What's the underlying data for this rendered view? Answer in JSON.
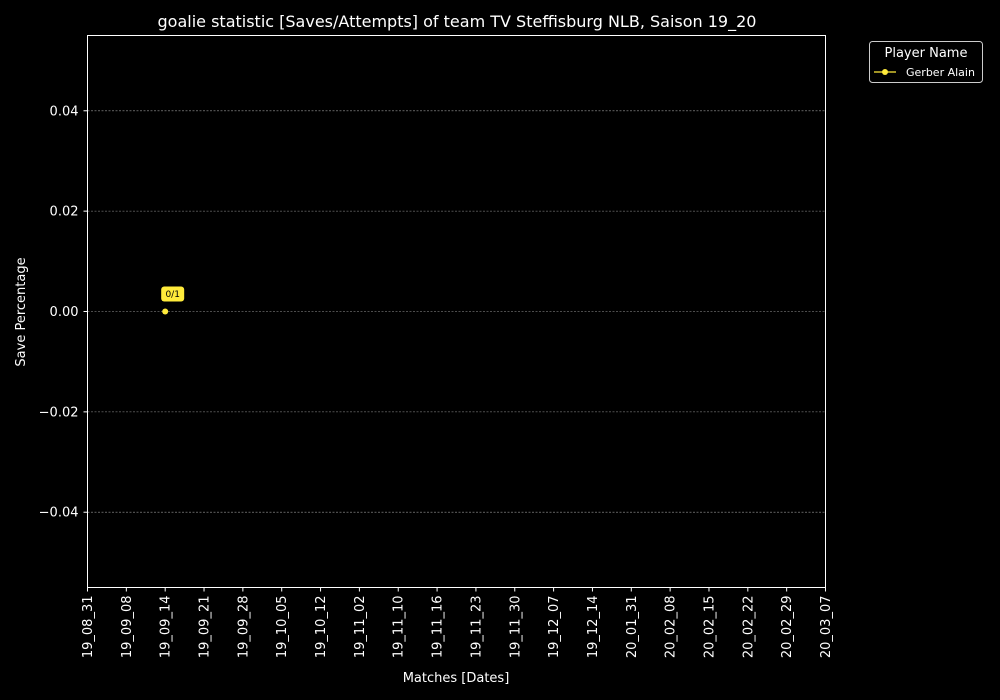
{
  "chart_data": {
    "type": "line",
    "title": "goalie statistic [Saves/Attempts] of team TV Steffisburg NLB, Saison 19_20",
    "xlabel": "Matches [Dates]",
    "ylabel": "Save Percentage",
    "categories": [
      "19_08_31",
      "19_09_08",
      "19_09_14",
      "19_09_21",
      "19_09_28",
      "19_10_05",
      "19_10_12",
      "19_11_02",
      "19_11_10",
      "19_11_16",
      "19_11_23",
      "19_11_30",
      "19_12_07",
      "19_12_14",
      "20_01_31",
      "20_02_08",
      "20_02_15",
      "20_02_22",
      "20_02_29",
      "20_03_07"
    ],
    "ylim": [
      -0.055,
      0.055
    ],
    "yticks": [
      0.04,
      0.02,
      0.0,
      -0.02,
      -0.04
    ],
    "ytick_labels": [
      "0.04",
      "0.02",
      "0.00",
      "−0.02",
      "−0.04"
    ],
    "grid": true,
    "legend": {
      "title": "Player Name",
      "placement": "outside top-right"
    },
    "series": [
      {
        "name": "Gerber Alain",
        "color": "#ffeb3b",
        "points": [
          {
            "x": "19_09_14",
            "y": 0.0,
            "label": "0/1"
          }
        ]
      }
    ]
  }
}
